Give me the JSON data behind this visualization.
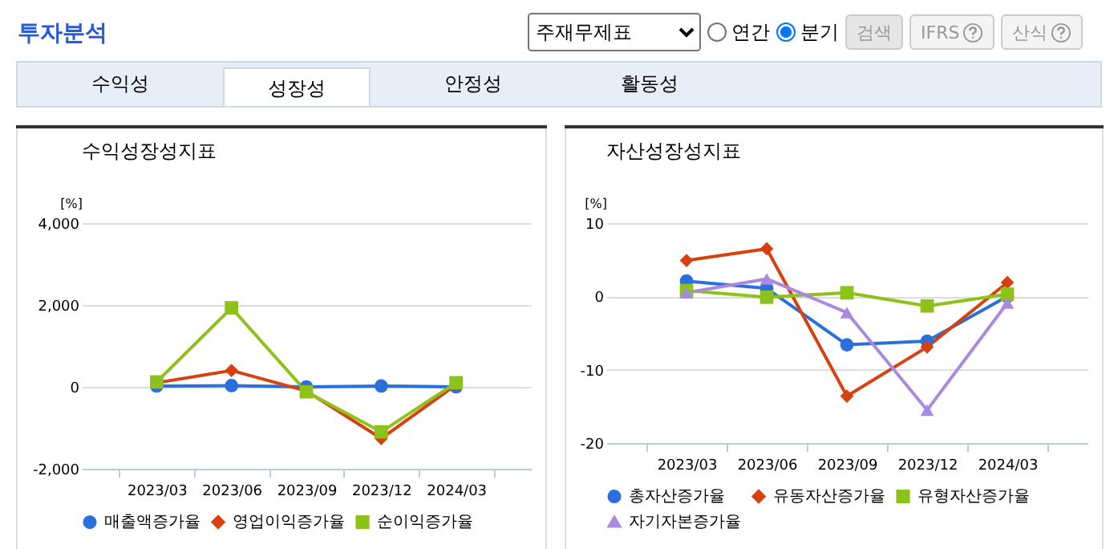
{
  "chart_data": [
    {
      "type": "other",
      "title": "투자분석",
      "annotations": [
        "주재무제표",
        "연간",
        "분기",
        "검색",
        "IFRS",
        "산식",
        "수익성",
        "성장성",
        "안정성",
        "활동성"
      ]
    },
    {
      "type": "line",
      "title": "수익성장성지표",
      "ylabel": "[%]",
      "categories": [
        "2023/03",
        "2023/06",
        "2023/09",
        "2023/12",
        "2024/03"
      ],
      "ylim": [
        -2000,
        4000
      ],
      "yticks": [
        {
          "value": -2000,
          "label": "-2,000"
        },
        0,
        {
          "value": 2000,
          "label": "2,000"
        },
        {
          "value": 4000,
          "label": "4,000"
        }
      ],
      "grid": "y",
      "legend": "bottom",
      "series": [
        {
          "name": "매출액증가율",
          "color": "#2a6fdb",
          "marker": "circle",
          "values": [
            20,
            30,
            0,
            20,
            0
          ]
        },
        {
          "name": "영업이익증가율",
          "color": "#d9400f",
          "marker": "diamond",
          "values": [
            100,
            400,
            -100,
            -1260,
            50
          ]
        },
        {
          "name": "순이익증가율",
          "color": "#8cc21a",
          "marker": "square",
          "values": [
            120,
            1930,
            -120,
            -1100,
            100
          ]
        }
      ]
    },
    {
      "type": "line",
      "title": "자산성장성지표",
      "ylabel": "[%]",
      "categories": [
        "2023/03",
        "2023/06",
        "2023/09",
        "2023/12",
        "2024/03"
      ],
      "ylim": [
        -20,
        10
      ],
      "yticks": [
        -20,
        -10,
        0,
        10
      ],
      "grid": "y",
      "legend": "bottom",
      "series": [
        {
          "name": "총자산증가율",
          "color": "#2a6fdb",
          "marker": "circle",
          "values": [
            2.1,
            1.1,
            -6.6,
            -6.1,
            0
          ]
        },
        {
          "name": "유동자산증가율",
          "color": "#d9400f",
          "marker": "diamond",
          "values": [
            4.9,
            6.5,
            -13.6,
            -6.9,
            1.9
          ]
        },
        {
          "name": "유형자산증가율",
          "color": "#8cc21a",
          "marker": "square",
          "values": [
            0.8,
            -0.1,
            0.5,
            -1.3,
            0.3
          ]
        },
        {
          "name": "자기자본증가율",
          "color": "#a98ae0",
          "marker": "triangle",
          "values": [
            0.5,
            2.4,
            -2.2,
            -15.5,
            -0.9
          ]
        }
      ]
    }
  ]
}
